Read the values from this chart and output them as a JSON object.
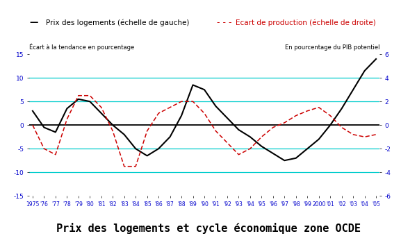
{
  "title": "Prix des logements et cycle économique zone OCDE",
  "legend_label1": "Prix des logements (échelle de gauche)",
  "legend_label2": "Ecart de production (échelle de droite)",
  "ylabel_left": "Écart à la tendance en pourcentage",
  "ylabel_right": "En pourcentage du PIB potentiel",
  "years": [
    1975,
    1976,
    1977,
    1978,
    1979,
    1980,
    1981,
    1982,
    1983,
    1984,
    1985,
    1986,
    1987,
    1988,
    1989,
    1990,
    1991,
    1992,
    1993,
    1994,
    1995,
    1996,
    1997,
    1998,
    1999,
    2000,
    2001,
    2002,
    2003,
    2004,
    2005
  ],
  "prix": [
    3.0,
    -0.5,
    -1.5,
    3.5,
    5.5,
    5.0,
    2.5,
    0.0,
    -2.0,
    -5.0,
    -6.5,
    -5.0,
    -2.5,
    2.0,
    8.5,
    7.5,
    4.0,
    1.5,
    -1.0,
    -2.5,
    -4.5,
    -6.0,
    -7.5,
    -7.0,
    -5.0,
    -3.0,
    0.0,
    3.5,
    7.5,
    11.5,
    14.0
  ],
  "ecart": [
    0.0,
    -2.0,
    -2.5,
    0.5,
    2.5,
    2.5,
    1.5,
    -0.5,
    -3.5,
    -3.5,
    -0.5,
    1.0,
    1.5,
    2.0,
    2.0,
    1.0,
    -0.5,
    -1.5,
    -2.5,
    -2.0,
    -1.0,
    -0.2,
    0.2,
    0.8,
    1.2,
    1.5,
    0.8,
    -0.2,
    -0.8,
    -1.0,
    -0.8
  ],
  "ylim_left": [
    -15,
    15
  ],
  "ylim_right": [
    -6,
    6
  ],
  "yticks_left": [
    -15,
    -10,
    -5,
    0,
    5,
    10,
    15
  ],
  "yticks_right": [
    -6,
    -4,
    -2,
    0,
    2,
    4,
    6
  ],
  "hlines_cyan": [
    -10,
    -5,
    5,
    10
  ],
  "hline_zero": 0,
  "color_prix": "#000000",
  "color_ecart": "#cc0000",
  "color_hline_cyan": "#00cccc",
  "color_tick_label": "#0000cc",
  "background": "#ffffff"
}
